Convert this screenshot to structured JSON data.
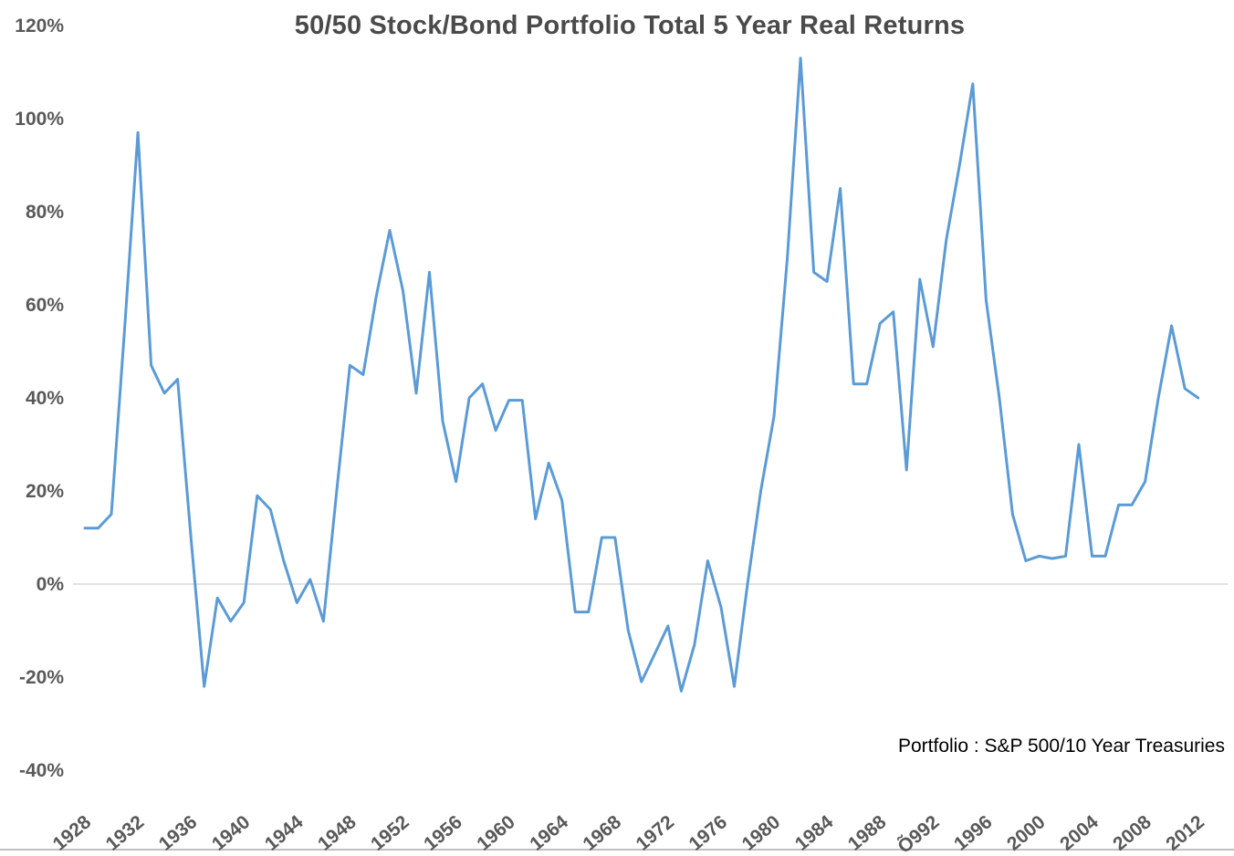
{
  "chart_data": {
    "type": "line",
    "title": "50/50 Stock/Bond Portfolio Total 5 Year Real Returns",
    "annotation": "Portfolio : S&P 500/10 Year Treasuries",
    "series_name": "5 Year Total Real Return",
    "xlabel": "",
    "ylabel": "",
    "legend": "none",
    "grid": "zero-line-only",
    "line_color": "#5B9BD5",
    "text_color": "#595959",
    "zero_line_color": "#d9d9d9",
    "border_color": "#bfbfbf",
    "ylim": [
      -40,
      120
    ],
    "y_ticks": [
      120,
      100,
      80,
      60,
      40,
      20,
      0,
      -20,
      -40
    ],
    "y_tick_labels": [
      "120%",
      "100%",
      "80%",
      "60%",
      "40%",
      "20%",
      "0%",
      "-20%",
      "-40%"
    ],
    "x_tick_years": [
      1928,
      1932,
      1936,
      1940,
      1944,
      1948,
      1952,
      1956,
      1960,
      1964,
      1968,
      1972,
      1976,
      1980,
      1984,
      1988,
      1992,
      1996,
      2000,
      2004,
      2008,
      2012
    ],
    "x_tick_labels": [
      "1928",
      "1932",
      "1936",
      "1940",
      "1944",
      "1948",
      "1952",
      "1956",
      "1960",
      "1964",
      "1968",
      "1972",
      "1976",
      "1980",
      "1984",
      "1988",
      "Õ992",
      "1996",
      "2000",
      "2004",
      "2008",
      "2012"
    ],
    "x": [
      1928,
      1929,
      1930,
      1931,
      1932,
      1933,
      1934,
      1935,
      1936,
      1937,
      1938,
      1939,
      1940,
      1941,
      1942,
      1943,
      1944,
      1945,
      1946,
      1947,
      1948,
      1949,
      1950,
      1951,
      1952,
      1953,
      1954,
      1955,
      1956,
      1957,
      1958,
      1959,
      1960,
      1961,
      1962,
      1963,
      1964,
      1965,
      1966,
      1967,
      1968,
      1969,
      1970,
      1971,
      1972,
      1973,
      1974,
      1975,
      1976,
      1977,
      1978,
      1979,
      1980,
      1981,
      1982,
      1983,
      1984,
      1985,
      1986,
      1987,
      1988,
      1989,
      1990,
      1991,
      1992,
      1993,
      1994,
      1995,
      1996,
      1997,
      1998,
      1999,
      2000,
      2001,
      2002,
      2003,
      2004,
      2005,
      2006,
      2007,
      2008,
      2009,
      2010,
      2011,
      2012
    ],
    "values": [
      12,
      12,
      15,
      55,
      97,
      47,
      41,
      44,
      10,
      -22,
      -3,
      -8,
      -4,
      19,
      16,
      5,
      -4,
      1,
      -8,
      20,
      47,
      45,
      62,
      76,
      63,
      41,
      67,
      35,
      22,
      40,
      43,
      33,
      39.5,
      39.5,
      14,
      26,
      18,
      -6,
      -6,
      10,
      10,
      -10,
      -21,
      -15,
      -9,
      -23,
      -13,
      5,
      -5,
      -22,
      0,
      20,
      36,
      70,
      113,
      67,
      65,
      85,
      43,
      43,
      56,
      58.5,
      24.5,
      65.5,
      51,
      74,
      90,
      107.5,
      61,
      40,
      15,
      5,
      6,
      5.5,
      6,
      30,
      6,
      6,
      17,
      17,
      22,
      40,
      55.5,
      42,
      40
    ]
  }
}
